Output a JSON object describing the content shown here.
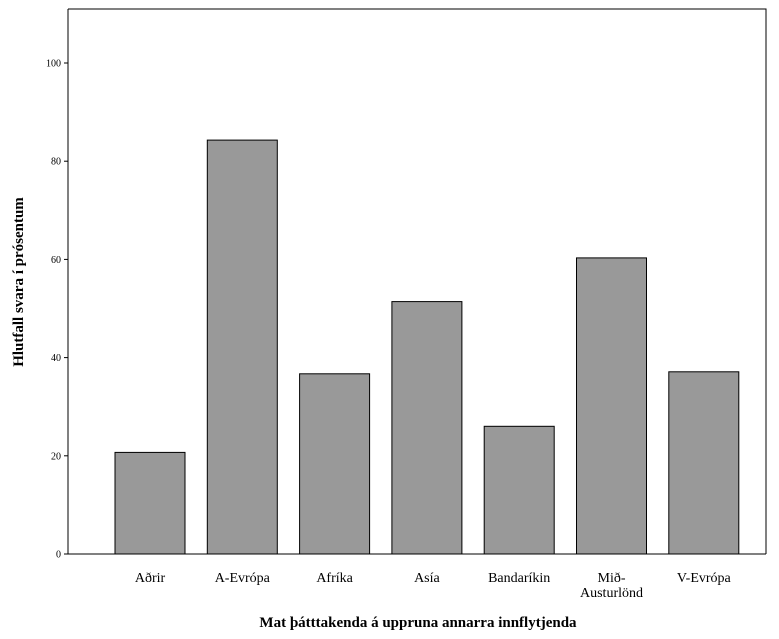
{
  "chart_data": {
    "type": "bar",
    "categories": [
      "Aðrir",
      "A-Evrópa",
      "Afríka",
      "Asía",
      "Bandaríkin",
      "Mið-\nAusturlönd",
      "V-Evrópa"
    ],
    "values": [
      20.7,
      84.3,
      36.7,
      51.4,
      26.0,
      60.3,
      37.1
    ],
    "xlabel": "Mat þátttakenda á uppruna annarra innflytjenda",
    "ylabel": "Hlutfall svara í prósentum",
    "ylim": [
      0,
      111
    ],
    "yticks": [
      0,
      20,
      40,
      60,
      80,
      100
    ],
    "grid": false,
    "bar_color": "#999999"
  }
}
